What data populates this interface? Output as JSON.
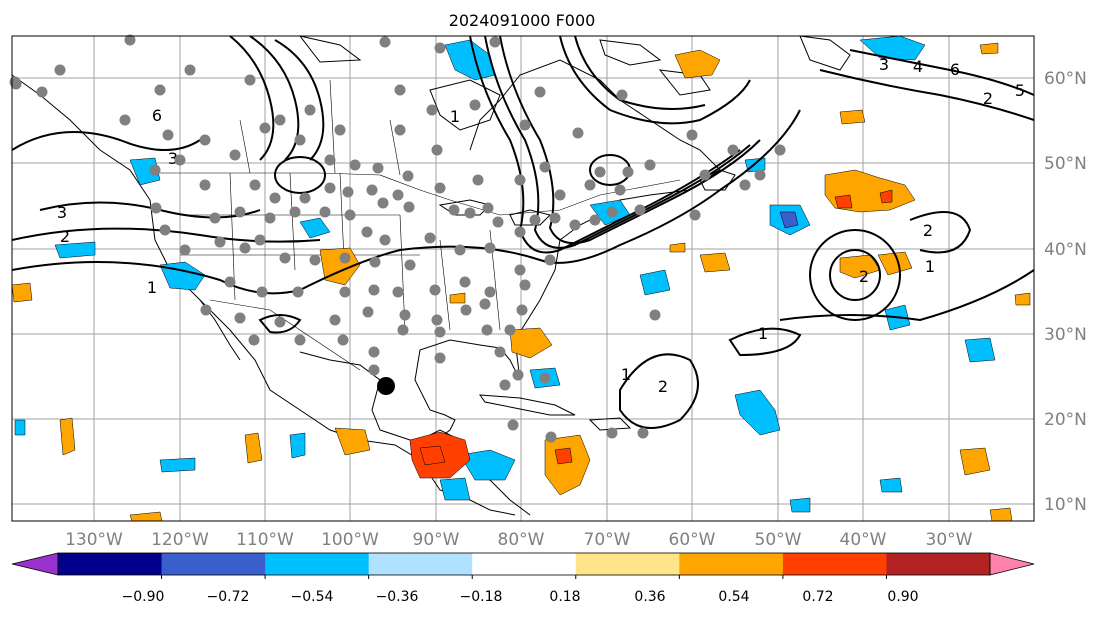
{
  "title": "2024091000 F000",
  "lat_labels": [
    "10°N",
    "20°N",
    "30°N",
    "40°N",
    "50°N",
    "60°N"
  ],
  "lon_labels": [
    "130°W",
    "120°W",
    "110°W",
    "100°W",
    "90°W",
    "80°W",
    "70°W",
    "60°W",
    "50°W",
    "40°W",
    "30°W"
  ],
  "colorbar": {
    "tick_labels": [
      "−0.90",
      "−0.72",
      "−0.54",
      "−0.36",
      "−0.18",
      "0.18",
      "0.36",
      "0.54",
      "0.72",
      "0.90"
    ],
    "colors": [
      "#9932cc",
      "#00008b",
      "#3a5fcd",
      "#00bfff",
      "#b0e2ff",
      "#ffffff",
      "#ffe48a",
      "#ffa500",
      "#ff4000",
      "#b22222",
      "#ff82ab"
    ]
  },
  "contour_labels": [
    "1",
    "1",
    "1",
    "1",
    "1",
    "2",
    "2",
    "2",
    "2",
    "2",
    "3",
    "3",
    "3",
    "4",
    "5",
    "6",
    "6"
  ],
  "colors": {
    "station": "#808080",
    "storm_marker": "#000000",
    "grid": "#a0a0a0",
    "contour": "#000000",
    "axis_label": "#808080"
  }
}
